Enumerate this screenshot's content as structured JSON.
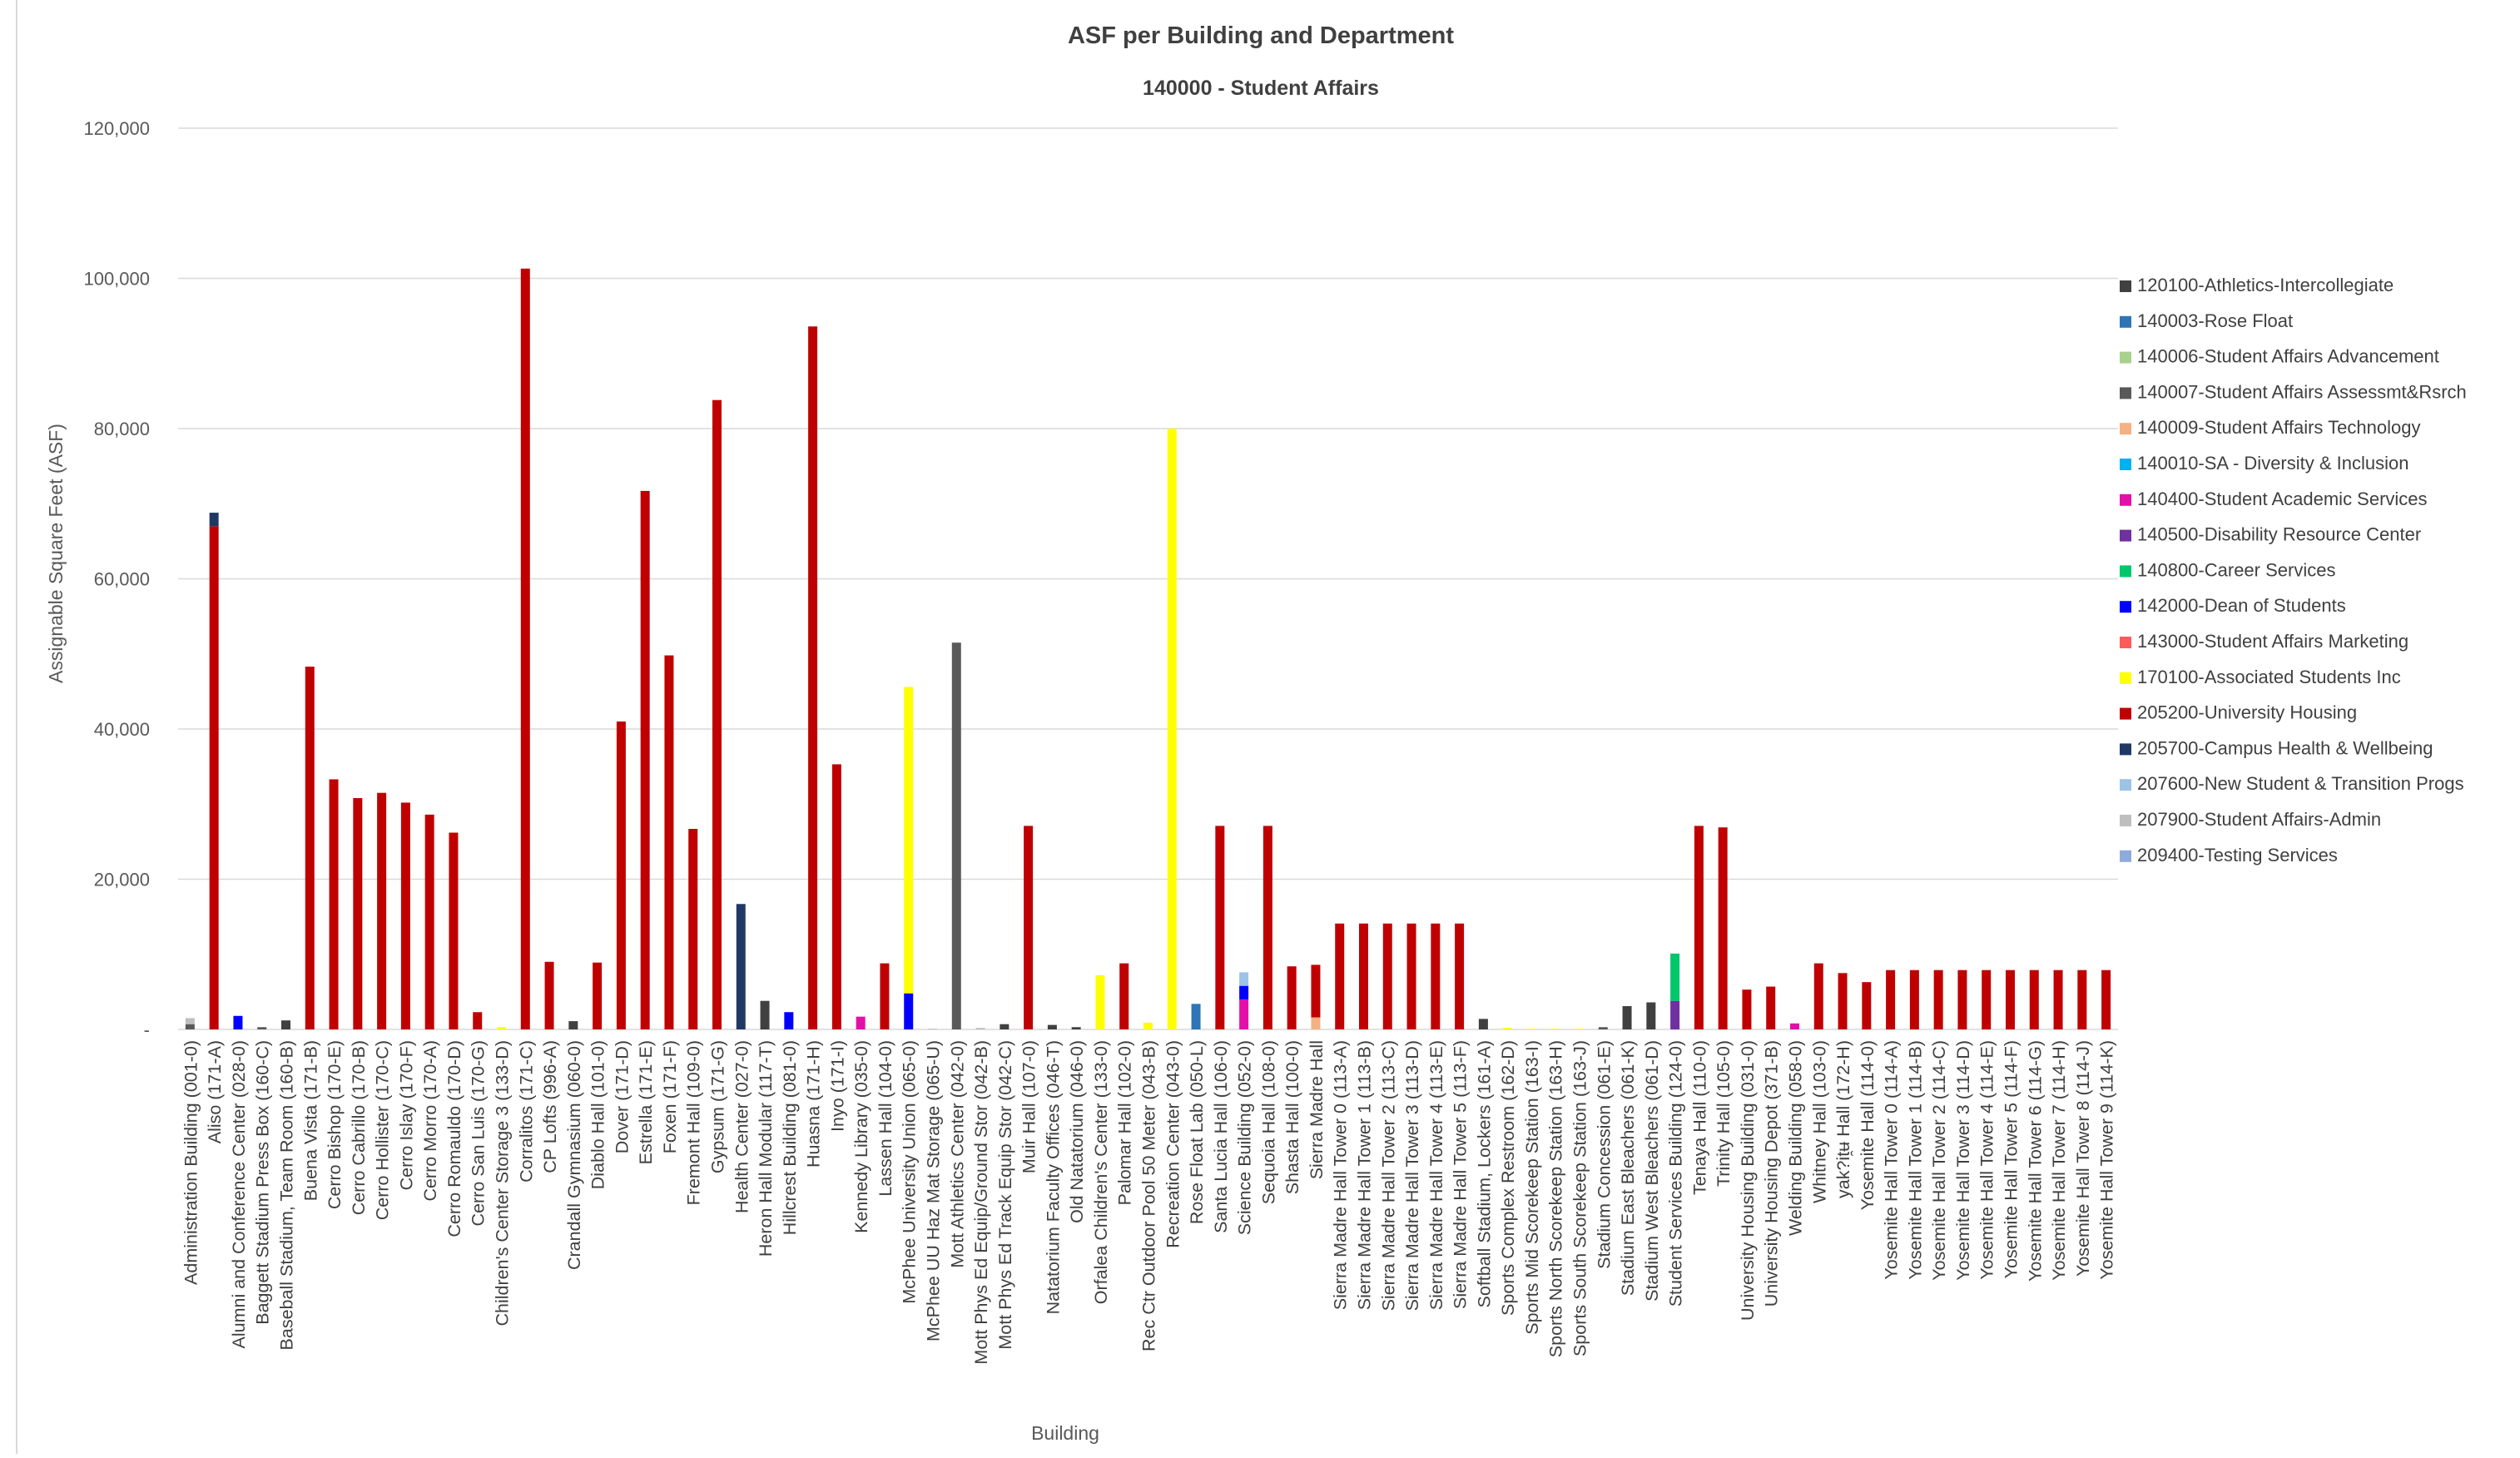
{
  "chart_data": {
    "type": "bar",
    "stacked": true,
    "title": "ASF per Building and Department",
    "subtitle": "140000 - Student Affairs",
    "xlabel": "Building",
    "ylabel": "Assignable Square Feet (ASF)",
    "ylim": [
      0,
      120000
    ],
    "yticks": [
      0,
      20000,
      40000,
      60000,
      80000,
      100000,
      120000
    ],
    "ytick_labels": [
      "-",
      "20,000",
      "40,000",
      "60,000",
      "80,000",
      "100,000",
      "120,000"
    ],
    "grid": true,
    "legend_position": "right",
    "categories": [
      "Administration Building (001-0)",
      "Aliso (171-A)",
      "Alumni and Conference Center (028-0)",
      "Baggett Stadium Press Box (160-C)",
      "Baseball Stadium, Team Room (160-B)",
      "Buena Vista (171-B)",
      "Cerro Bishop (170-E)",
      "Cerro Cabrillo (170-B)",
      "Cerro Hollister (170-C)",
      "Cerro Islay (170-F)",
      "Cerro Morro (170-A)",
      "Cerro Romauldo (170-D)",
      "Cerro San Luis (170-G)",
      "Children's Center Storage 3 (133-D)",
      "Corralitos (171-C)",
      "CP Lofts (996-A)",
      "Crandall Gymnasium (060-0)",
      "Diablo Hall (101-0)",
      "Dover (171-D)",
      "Estrella (171-E)",
      "Foxen (171-F)",
      "Fremont Hall (109-0)",
      "Gypsum (171-G)",
      "Health Center (027-0)",
      "Heron Hall Modular (117-T)",
      "Hillcrest Building (081-0)",
      "Huasna (171-H)",
      "Inyo (171-I)",
      "Kennedy Library (035-0)",
      "Lassen Hall (104-0)",
      "McPhee University Union (065-0)",
      "McPhee UU Haz Mat Storage (065-U)",
      "Mott Athletics Center (042-0)",
      "Mott Phys Ed Equip/Ground Stor (042-B)",
      "Mott Phys Ed Track Equip Stor (042-C)",
      "Muir Hall (107-0)",
      "Natatorium Faculty Offices (046-T)",
      "Old Natatorium (046-0)",
      "Orfalea Children's Center (133-0)",
      "Palomar Hall (102-0)",
      "Rec Ctr Outdoor Pool 50 Meter (043-B)",
      "Recreation Center (043-0)",
      "Rose Float Lab (050-L)",
      "Santa Lucia Hall (106-0)",
      "Science Building (052-0)",
      "Sequoia Hall (108-0)",
      "Shasta Hall (100-0)",
      "Sierra Madre Hall",
      "Sierra Madre Hall Tower 0 (113-A)",
      "Sierra Madre Hall Tower 1 (113-B)",
      "Sierra Madre Hall Tower 2 (113-C)",
      "Sierra Madre Hall Tower 3 (113-D)",
      "Sierra Madre Hall Tower 4 (113-E)",
      "Sierra Madre Hall Tower 5 (113-F)",
      "Softball Stadium, Lockers (161-A)",
      "Sports Complex Restroom (162-D)",
      "Sports Mid Scorekeep Station (163-I)",
      "Sports North Scorekeep Station (163-H)",
      "Sports South Scorekeep Station (163-J)",
      "Stadium Concession (061-E)",
      "Stadium East Bleachers (061-K)",
      "Stadium West Bleachers (061-D)",
      "Student Services Building (124-0)",
      "Tenaya Hall (110-0)",
      "Trinity Hall (105-0)",
      "University Housing Building (031-0)",
      "University Housing Depot (371-B)",
      "Welding Building (058-0)",
      "Whitney Hall (103-0)",
      "yak?it̯ʉ Hall (172-H)",
      "Yosemite Hall (114-0)",
      "Yosemite Hall Tower 0 (114-A)",
      "Yosemite Hall Tower 1 (114-B)",
      "Yosemite Hall Tower 2 (114-C)",
      "Yosemite Hall Tower 3 (114-D)",
      "Yosemite Hall Tower 4 (114-E)",
      "Yosemite Hall Tower 5 (114-F)",
      "Yosemite Hall Tower 6 (114-G)",
      "Yosemite Hall Tower 7 (114-H)",
      "Yosemite Hall Tower 8 (114-J)",
      "Yosemite Hall Tower 9 (114-K)"
    ],
    "series": [
      {
        "name": "120100-Athletics-Intercollegiate",
        "color": "#404040",
        "points": [
          {
            "i": 4,
            "v": 1200
          },
          {
            "i": 16,
            "v": 1100
          },
          {
            "i": 24,
            "v": 3800
          },
          {
            "i": 34,
            "v": 700
          },
          {
            "i": 36,
            "v": 600
          },
          {
            "i": 37,
            "v": 300
          },
          {
            "i": 54,
            "v": 1400
          },
          {
            "i": 60,
            "v": 3100
          },
          {
            "i": 61,
            "v": 3600
          }
        ]
      },
      {
        "name": "140003-Rose Float",
        "color": "#2e75b6",
        "points": [
          {
            "i": 42,
            "v": 3400
          }
        ]
      },
      {
        "name": "140006-Student Affairs Advancement",
        "color": "#a9d18e",
        "points": []
      },
      {
        "name": "140007-Student Affairs Assessmt&Rsrch",
        "color": "#595959",
        "points": [
          {
            "i": 0,
            "v": 700
          },
          {
            "i": 3,
            "v": 300
          },
          {
            "i": 32,
            "v": 51500
          },
          {
            "i": 59,
            "v": 300
          }
        ]
      },
      {
        "name": "140009-Student Affairs Technology",
        "color": "#f4b183",
        "points": [
          {
            "i": 47,
            "v": 1600
          }
        ]
      },
      {
        "name": "140010-SA - Diversity & Inclusion",
        "color": "#00b0f0",
        "points": []
      },
      {
        "name": "140400-Student Academic Services",
        "color": "#e40fa8",
        "points": [
          {
            "i": 28,
            "v": 1700
          },
          {
            "i": 44,
            "v": 4000
          },
          {
            "i": 67,
            "v": 800
          }
        ]
      },
      {
        "name": "140500-Disability Resource Center",
        "color": "#7030a0",
        "points": [
          {
            "i": 62,
            "v": 3800
          }
        ]
      },
      {
        "name": "140800-Career Services",
        "color": "#00c76a",
        "points": [
          {
            "i": 62,
            "v": 6300
          }
        ]
      },
      {
        "name": "142000-Dean of Students",
        "color": "#0000ff",
        "points": [
          {
            "i": 2,
            "v": 1800
          },
          {
            "i": 25,
            "v": 2300
          },
          {
            "i": 30,
            "v": 4800
          },
          {
            "i": 44,
            "v": 1800
          }
        ]
      },
      {
        "name": "143000-Student Affairs Marketing",
        "color": "#ff5b5b",
        "points": []
      },
      {
        "name": "170100-Associated Students Inc",
        "color": "#ffff00",
        "points": [
          {
            "i": 13,
            "v": 300
          },
          {
            "i": 30,
            "v": 40800
          },
          {
            "i": 38,
            "v": 7200
          },
          {
            "i": 40,
            "v": 900
          },
          {
            "i": 41,
            "v": 80000
          },
          {
            "i": 55,
            "v": 200
          },
          {
            "i": 56,
            "v": 100
          },
          {
            "i": 57,
            "v": 100
          },
          {
            "i": 58,
            "v": 100
          }
        ]
      },
      {
        "name": "205200-University Housing",
        "color": "#c00000",
        "points": [
          {
            "i": 1,
            "v": 67000
          },
          {
            "i": 5,
            "v": 48300
          },
          {
            "i": 6,
            "v": 33300
          },
          {
            "i": 7,
            "v": 30800
          },
          {
            "i": 8,
            "v": 31500
          },
          {
            "i": 9,
            "v": 30200
          },
          {
            "i": 10,
            "v": 28600
          },
          {
            "i": 11,
            "v": 26200
          },
          {
            "i": 12,
            "v": 2300
          },
          {
            "i": 14,
            "v": 101300
          },
          {
            "i": 15,
            "v": 9000
          },
          {
            "i": 17,
            "v": 8900
          },
          {
            "i": 18,
            "v": 41000
          },
          {
            "i": 19,
            "v": 71700
          },
          {
            "i": 20,
            "v": 49800
          },
          {
            "i": 21,
            "v": 26700
          },
          {
            "i": 22,
            "v": 83800
          },
          {
            "i": 26,
            "v": 93600
          },
          {
            "i": 27,
            "v": 35300
          },
          {
            "i": 29,
            "v": 8800
          },
          {
            "i": 35,
            "v": 27100
          },
          {
            "i": 39,
            "v": 8800
          },
          {
            "i": 43,
            "v": 27100
          },
          {
            "i": 45,
            "v": 27100
          },
          {
            "i": 46,
            "v": 8400
          },
          {
            "i": 47,
            "v": 7000
          },
          {
            "i": 48,
            "v": 14100
          },
          {
            "i": 49,
            "v": 14100
          },
          {
            "i": 50,
            "v": 14100
          },
          {
            "i": 51,
            "v": 14100
          },
          {
            "i": 52,
            "v": 14100
          },
          {
            "i": 53,
            "v": 14100
          },
          {
            "i": 63,
            "v": 27100
          },
          {
            "i": 64,
            "v": 26900
          },
          {
            "i": 65,
            "v": 5300
          },
          {
            "i": 66,
            "v": 5700
          },
          {
            "i": 68,
            "v": 8800
          },
          {
            "i": 69,
            "v": 7500
          },
          {
            "i": 70,
            "v": 6300
          },
          {
            "i": 71,
            "v": 7900
          },
          {
            "i": 72,
            "v": 7900
          },
          {
            "i": 73,
            "v": 7900
          },
          {
            "i": 74,
            "v": 7900
          },
          {
            "i": 75,
            "v": 7900
          },
          {
            "i": 76,
            "v": 7900
          },
          {
            "i": 77,
            "v": 7900
          },
          {
            "i": 78,
            "v": 7900
          },
          {
            "i": 79,
            "v": 7900
          },
          {
            "i": 80,
            "v": 7900
          }
        ]
      },
      {
        "name": "205700-Campus Health & Wellbeing",
        "color": "#203864",
        "points": [
          {
            "i": 1,
            "v": 1800
          },
          {
            "i": 23,
            "v": 16700
          }
        ]
      },
      {
        "name": "207600-New Student & Transition Progs",
        "color": "#9dc3e6",
        "points": [
          {
            "i": 44,
            "v": 1800
          }
        ]
      },
      {
        "name": "207900-Student Affairs-Admin",
        "color": "#bfbfbf",
        "points": [
          {
            "i": 0,
            "v": 800
          },
          {
            "i": 31,
            "v": 100
          },
          {
            "i": 33,
            "v": 200
          }
        ]
      },
      {
        "name": "209400-Testing Services",
        "color": "#8faadc",
        "points": []
      }
    ]
  }
}
